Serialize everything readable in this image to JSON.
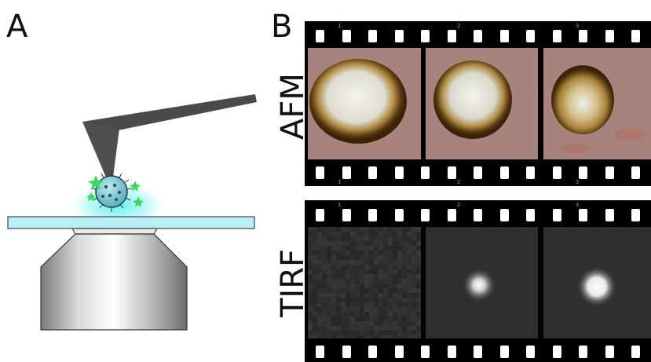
{
  "panels": {
    "a_label": "A",
    "b_label": "B"
  },
  "rows": {
    "afm_label": "AFM",
    "tirf_label": "TIRF"
  },
  "film": {
    "frame_numbers": [
      "1",
      "2",
      "3"
    ]
  },
  "colors": {
    "afm_background": "#a8827c",
    "afm_particle_core": "#f2f2ee",
    "afm_particle_rim": "#5a3a10",
    "tirf_background": "#2d2d2d",
    "glass": "#b9f0f5",
    "objective": "#9e9e9e",
    "cantilever": "#4a4a4a",
    "fluorophore": "#33dd55",
    "virus": "#6fc0cf"
  }
}
